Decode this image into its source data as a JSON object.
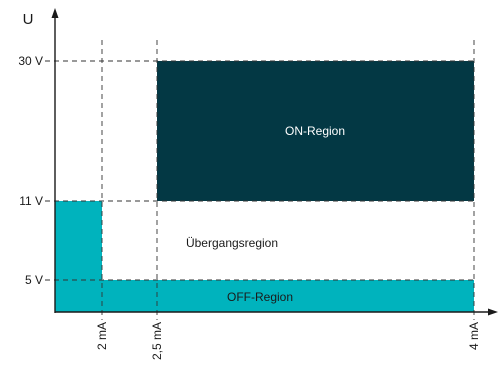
{
  "diagram": {
    "axes": {
      "y_label": "U",
      "x_ticks": [
        "2 mA",
        "2,5 mA",
        "4 mA"
      ],
      "y_ticks": [
        "30 V",
        "11 V",
        "5 V"
      ]
    },
    "regions": {
      "on": {
        "label": "ON-Region",
        "color": "#033844"
      },
      "transition": {
        "label": "Übergangsregion"
      },
      "off": {
        "label": "OFF-Region",
        "color": "#00b3bd"
      }
    },
    "colors": {
      "axis": "#1a1a1a",
      "guide": "#333333"
    }
  }
}
